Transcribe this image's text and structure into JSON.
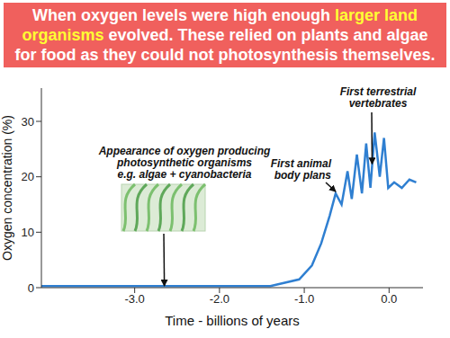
{
  "chart_data": {
    "type": "line",
    "title": "When oxygen levels were high enough larger land organisms evolved. These relied on plants and algae for food as they could not photosynthesis themselves.",
    "title_highlight": "larger land organisms",
    "x_label": "Time - billions of years",
    "y_label": "Oxygen concentration (%)",
    "x": [
      -4.1,
      -1.4,
      -1.06,
      -0.91,
      -0.8,
      -0.7,
      -0.63,
      -0.56,
      -0.49,
      -0.44,
      -0.38,
      -0.32,
      -0.27,
      -0.22,
      -0.17,
      -0.11,
      -0.06,
      -0.01,
      0.06,
      0.15,
      0.24,
      0.32
    ],
    "values": [
      0.3,
      0.3,
      1.5,
      4,
      8,
      13,
      17,
      15,
      21,
      16,
      24,
      17,
      26,
      18,
      28,
      20,
      27,
      18,
      19,
      18,
      19.5,
      19
    ],
    "color": "#2f7fd1",
    "xlim": [
      -4.1,
      0.4
    ],
    "ylim": [
      0,
      36
    ],
    "xticks": [
      {
        "value": -3,
        "label": "-3.0"
      },
      {
        "value": -2,
        "label": "-2.0"
      },
      {
        "value": -1,
        "label": "-1.0"
      },
      {
        "value": 0,
        "label": "0.0"
      }
    ],
    "yticks": [
      0,
      10,
      20,
      30
    ],
    "grid": false,
    "annotations": [
      {
        "text": [
          "Appearance of oxygen producing",
          "photosynthetic organisms",
          "e.g. algae + cyanobacteria"
        ],
        "x": -2.65,
        "y": 0
      },
      {
        "text": [
          "First animal",
          "body plans"
        ],
        "x": -0.63,
        "y": 17
      },
      {
        "text": [
          "First terrestrial",
          "vertebrates"
        ],
        "x": -0.2,
        "y": 22
      }
    ]
  }
}
